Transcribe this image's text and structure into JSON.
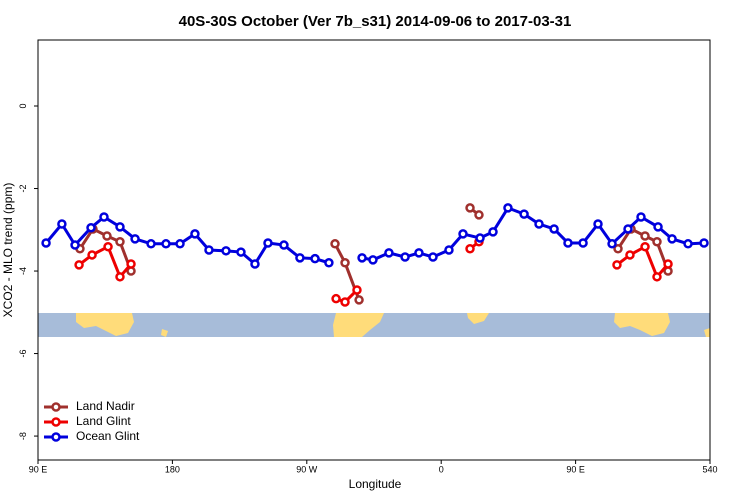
{
  "chart_data": {
    "type": "line",
    "title": "40S-30S October (Ver 7b_s31)   2014-09-06 to 2017-03-31",
    "x_label": "Longitude",
    "y_label": "XCO2 - MLO trend (ppm)",
    "xlim": [
      90,
      540
    ],
    "ylim": [
      -8.58,
      1.6
    ],
    "xticks": [
      {
        "value": 90,
        "label": "90 E"
      },
      180,
      {
        "value": 270,
        "label": "90 W"
      },
      {
        "value": 360,
        "label": "0"
      },
      {
        "value": 450,
        "label": "90 E"
      },
      540
    ],
    "yticks": [
      0,
      -2,
      -4,
      -6,
      -8
    ],
    "legend": "bottom-left",
    "series": [
      {
        "name": "Land Nadir",
        "color": "#a0302d",
        "x": [
          118.1,
          126.8,
          136.2,
          144.9,
          152.3,
          null,
          288.9,
          295.6,
          305,
          null,
          379.3,
          385.3,
          null,
          478.4,
          487.1,
          496.5,
          504.5,
          511.9
        ],
        "values": [
          -3.46,
          -2.98,
          -3.15,
          -3.29,
          -4.0,
          null,
          -3.34,
          -3.8,
          -4.7,
          null,
          -2.47,
          -2.64,
          null,
          -3.46,
          -2.98,
          -3.15,
          -3.29,
          -4.0
        ]
      },
      {
        "name": "Land Glint",
        "color": "#ee0000",
        "x": [
          117.5,
          126.2,
          136.9,
          144.9,
          152.3,
          null,
          289.6,
          295.6,
          303.6,
          null,
          379.3,
          385.3,
          null,
          477.7,
          486.4,
          496.5,
          504.5,
          511.9
        ],
        "values": [
          -3.85,
          -3.61,
          -3.41,
          -4.14,
          -3.83,
          null,
          -4.67,
          -4.75,
          -4.46,
          null,
          -3.46,
          -3.29,
          null,
          -3.85,
          -3.61,
          -3.41,
          -4.14,
          -3.83
        ]
      },
      {
        "name": "Ocean Glint",
        "color": "#0000dd",
        "x": [
          95.4,
          106,
          114.8,
          125.5,
          134.2,
          144.9,
          155,
          165.7,
          175.7,
          185.1,
          195.1,
          204.5,
          215.9,
          225.9,
          235.3,
          244,
          254.7,
          265.4,
          275.5,
          284.8,
          null,
          307,
          314.3,
          325,
          335.8,
          345.1,
          354.5,
          365.2,
          374.6,
          386,
          394.7,
          404.7,
          415.5,
          425.5,
          435.6,
          444.9,
          455,
          465,
          474.4,
          485.1,
          493.8,
          505.2,
          514.6,
          525.3,
          536
        ],
        "values": [
          -3.32,
          -2.86,
          -3.37,
          -2.95,
          -2.69,
          -2.93,
          -3.22,
          -3.34,
          -3.34,
          -3.34,
          -3.1,
          -3.49,
          -3.51,
          -3.54,
          -3.83,
          -3.32,
          -3.37,
          -3.68,
          -3.7,
          -3.8,
          null,
          -3.68,
          -3.73,
          -3.56,
          -3.66,
          -3.56,
          -3.66,
          -3.49,
          -3.1,
          -3.2,
          -3.05,
          -2.47,
          -2.62,
          -2.86,
          -2.98,
          -3.32,
          -3.32,
          -2.86,
          -3.34,
          -2.98,
          -2.69,
          -2.93,
          -3.22,
          -3.34,
          -3.32
        ]
      }
    ]
  }
}
